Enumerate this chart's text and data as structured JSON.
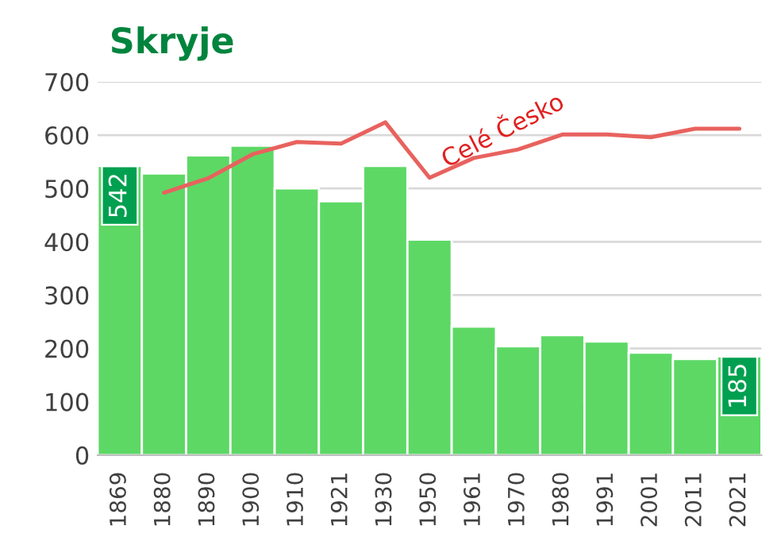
{
  "chart_data": {
    "type": "bar",
    "title": "Skryje",
    "categories": [
      "1869",
      "1880",
      "1890",
      "1900",
      "1910",
      "1921",
      "1930",
      "1950",
      "1961",
      "1970",
      "1980",
      "1991",
      "2001",
      "2011",
      "2021"
    ],
    "series": [
      {
        "color": "#5dd865",
        "values": [
          542,
          528,
          562,
          580,
          500,
          476,
          542,
          404,
          241,
          204,
          225,
          213,
          192,
          180,
          185
        ],
        "value_labels": [
          "542",
          null,
          null,
          null,
          null,
          null,
          null,
          null,
          null,
          null,
          null,
          null,
          null,
          null,
          "185"
        ]
      },
      {
        "type": "line",
        "name": "Celé Česko",
        "color": "#e8625e",
        "values": [
          null,
          492,
          519,
          564,
          587,
          584,
          624,
          520,
          557,
          573,
          601,
          601,
          596,
          612,
          612
        ]
      }
    ],
    "ylim": [
      0,
      700
    ],
    "yticks": [
      0,
      100,
      200,
      300,
      400,
      500,
      600,
      700
    ],
    "grid": "y",
    "legend": false,
    "marker": "none",
    "line_style": "solid"
  }
}
